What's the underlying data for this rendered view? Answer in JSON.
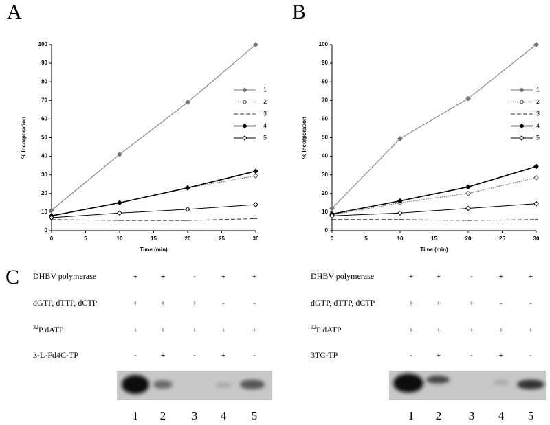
{
  "panel_labels": [
    "A",
    "B",
    "C"
  ],
  "chart_data": [
    {
      "type": "line",
      "xlabel": "Time (min)",
      "ylabel": "% Incorporation",
      "x": [
        0,
        10,
        20,
        30
      ],
      "xlim": [
        0,
        30
      ],
      "xticks": [
        0,
        5,
        10,
        15,
        20,
        25,
        30
      ],
      "ylim": [
        0,
        100
      ],
      "yticks": [
        0,
        10,
        20,
        30,
        40,
        50,
        60,
        70,
        80,
        90,
        100
      ],
      "series": [
        {
          "name": "1",
          "color": "#777777",
          "dash": "solid",
          "marker": "filled",
          "values": [
            11,
            41,
            69,
            100
          ]
        },
        {
          "name": "2",
          "color": "#555555",
          "dash": "dotted",
          "marker": "open",
          "values": [
            8,
            15,
            23,
            29.5
          ]
        },
        {
          "name": "3",
          "color": "#333333",
          "dash": "dashed",
          "marker": "none",
          "values": [
            6,
            5.5,
            5.5,
            6.5
          ]
        },
        {
          "name": "4",
          "color": "#000000",
          "dash": "solid",
          "marker": "filled",
          "values": [
            8,
            15,
            23,
            32
          ]
        },
        {
          "name": "5",
          "color": "#000000",
          "dash": "solid",
          "marker": "open",
          "values": [
            7,
            9.5,
            11.5,
            14
          ]
        }
      ]
    },
    {
      "type": "line",
      "xlabel": "Time (min)",
      "ylabel": "% Incorporation",
      "x": [
        0,
        10,
        20,
        30
      ],
      "xlim": [
        0,
        30
      ],
      "xticks": [
        0,
        5,
        10,
        15,
        20,
        25,
        30
      ],
      "ylim": [
        0,
        100
      ],
      "yticks": [
        0,
        10,
        20,
        30,
        40,
        50,
        60,
        70,
        80,
        90,
        100
      ],
      "series": [
        {
          "name": "1",
          "color": "#777777",
          "dash": "solid",
          "marker": "filled",
          "values": [
            12,
            49.5,
            71,
            100
          ]
        },
        {
          "name": "2",
          "color": "#555555",
          "dash": "dotted",
          "marker": "open",
          "values": [
            8.5,
            15,
            20,
            28.5
          ]
        },
        {
          "name": "3",
          "color": "#333333",
          "dash": "dashed",
          "marker": "none",
          "values": [
            6,
            6,
            5.5,
            6
          ]
        },
        {
          "name": "4",
          "color": "#000000",
          "dash": "solid",
          "marker": "filled",
          "values": [
            9,
            16,
            23.5,
            34.5
          ]
        },
        {
          "name": "5",
          "color": "#000000",
          "dash": "solid",
          "marker": "open",
          "values": [
            8,
            9.5,
            12,
            14.5
          ]
        }
      ]
    }
  ],
  "panel_c": [
    {
      "rows": [
        {
          "label": "DHBV polymerase",
          "signs": [
            "+",
            "+",
            "-",
            "+",
            "+"
          ]
        },
        {
          "label": "dGTP, dTTP, dCTP",
          "signs": [
            "+",
            "+",
            "+",
            "-",
            "-"
          ]
        },
        {
          "label_sup": "32",
          "label": "P  dATP",
          "signs": [
            "+",
            "+",
            "+",
            "+",
            "+"
          ]
        },
        {
          "label": "ß-L-Fd4C-TP",
          "signs": [
            "-",
            "+",
            "-",
            "+",
            "-"
          ]
        }
      ],
      "lanes": [
        "1",
        "2",
        "3",
        "4",
        "5"
      ]
    },
    {
      "rows": [
        {
          "label": "DHBV polymerase",
          "signs": [
            "+",
            "+",
            "-",
            "+",
            "+"
          ]
        },
        {
          "label": "dGTP, dTTP, dCTP",
          "signs": [
            "+",
            "+",
            "+",
            "-",
            "-"
          ]
        },
        {
          "label_sup": "32",
          "label": "P  dATP",
          "signs": [
            "+",
            "+",
            "+",
            "+",
            "+"
          ]
        },
        {
          "label": "3TC-TP",
          "signs": [
            "-",
            "+",
            "-",
            "+",
            "-"
          ]
        }
      ],
      "lanes": [
        "1",
        "2",
        "3",
        "4",
        "5"
      ]
    }
  ]
}
